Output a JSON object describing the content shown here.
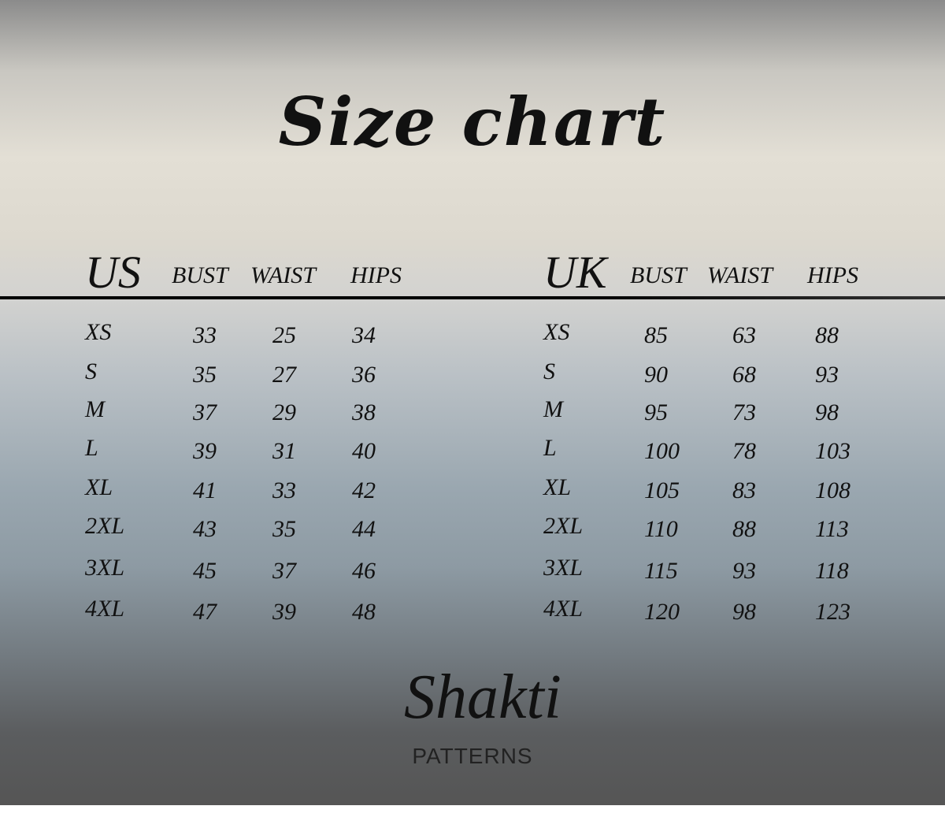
{
  "title": "Size chart",
  "tables": [
    {
      "region": "US",
      "headers": [
        "BUST",
        "WAIST",
        "HIPS"
      ],
      "rows": [
        {
          "size": "XS",
          "bust": "33",
          "waist": "25",
          "hips": "34"
        },
        {
          "size": "S",
          "bust": "35",
          "waist": "27",
          "hips": "36"
        },
        {
          "size": "M",
          "bust": "37",
          "waist": "29",
          "hips": "38"
        },
        {
          "size": "L",
          "bust": "39",
          "waist": "31",
          "hips": "40"
        },
        {
          "size": "XL",
          "bust": "41",
          "waist": "33",
          "hips": "42"
        },
        {
          "size": "2XL",
          "bust": "43",
          "waist": "35",
          "hips": "44"
        },
        {
          "size": "3XL",
          "bust": "45",
          "waist": "37",
          "hips": "46"
        },
        {
          "size": "4XL",
          "bust": "47",
          "waist": "39",
          "hips": "48"
        }
      ]
    },
    {
      "region": "UK",
      "headers": [
        "BUST",
        "WAIST",
        "HIPS"
      ],
      "rows": [
        {
          "size": "XS",
          "bust": "85",
          "waist": "63",
          "hips": "88"
        },
        {
          "size": "S",
          "bust": "90",
          "waist": "68",
          "hips": "93"
        },
        {
          "size": "M",
          "bust": "95",
          "waist": "73",
          "hips": "98"
        },
        {
          "size": "L",
          "bust": "100",
          "waist": "78",
          "hips": "103"
        },
        {
          "size": "XL",
          "bust": "105",
          "waist": "83",
          "hips": "108"
        },
        {
          "size": "2XL",
          "bust": "110",
          "waist": "88",
          "hips": "113"
        },
        {
          "size": "3XL",
          "bust": "115",
          "waist": "93",
          "hips": "118"
        },
        {
          "size": "4XL",
          "bust": "120",
          "waist": "98",
          "hips": "123"
        }
      ]
    }
  ],
  "brand": {
    "name": "Shakti",
    "tagline": "PATTERNS"
  }
}
